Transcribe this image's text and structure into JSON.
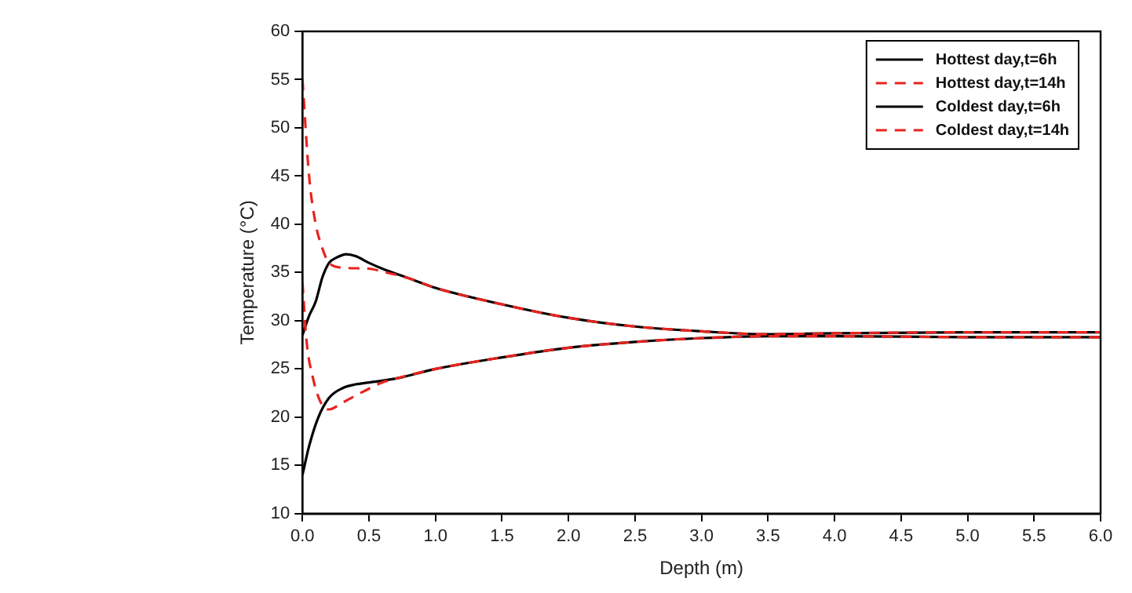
{
  "chart_data": {
    "type": "line",
    "xlabel": "Depth (m)",
    "ylabel": "Temperature (°C)",
    "xlim": [
      0,
      6
    ],
    "ylim": [
      10,
      60
    ],
    "xticks": [
      {
        "value": 0,
        "label": "0.0"
      },
      {
        "value": 0.5,
        "label": "0.5"
      },
      {
        "value": 1,
        "label": "1.0"
      },
      {
        "value": 1.5,
        "label": "1.5"
      },
      {
        "value": 2,
        "label": "2.0"
      },
      {
        "value": 2.5,
        "label": "2.5"
      },
      {
        "value": 3,
        "label": "3.0"
      },
      {
        "value": 3.5,
        "label": "3.5"
      },
      {
        "value": 4,
        "label": "4.0"
      },
      {
        "value": 4.5,
        "label": "4.5"
      },
      {
        "value": 5,
        "label": "5.0"
      },
      {
        "value": 5.5,
        "label": "5.5"
      },
      {
        "value": 6,
        "label": "6.0"
      }
    ],
    "yticks": [
      10,
      15,
      20,
      25,
      30,
      35,
      40,
      45,
      50,
      55,
      60
    ],
    "grid": false,
    "legend": "top right",
    "marker": "none",
    "series": [
      {
        "name": "Hottest day,t=6h",
        "color": "#000000",
        "line_style": "solid",
        "x": [
          0,
          0.05,
          0.1,
          0.15,
          0.2,
          0.25,
          0.33,
          0.4,
          0.5,
          0.6,
          0.8,
          1.0,
          1.5,
          2.0,
          2.5,
          3.0,
          3.5,
          4.0,
          5.0,
          6.0
        ],
        "values": [
          28.5,
          30.5,
          32,
          34.5,
          36,
          36.5,
          36.9,
          36.7,
          36,
          35.4,
          34.4,
          33.4,
          31.7,
          30.3,
          29.4,
          28.9,
          28.6,
          28.7,
          28.8,
          28.8
        ]
      },
      {
        "name": "Hottest day,t=14h",
        "color": "#e8231f",
        "line_style": "dashed",
        "x": [
          0,
          0.05,
          0.1,
          0.15,
          0.2,
          0.3,
          0.5,
          0.6,
          0.8,
          1.0,
          1.5,
          2.0,
          2.5,
          3.0,
          3.5,
          4.0,
          5.0,
          6.0
        ],
        "values": [
          55,
          45,
          40,
          37.5,
          36,
          35.5,
          35.4,
          35.1,
          34.4,
          33.4,
          31.7,
          30.3,
          29.4,
          28.9,
          28.6,
          28.7,
          28.8,
          28.8
        ]
      },
      {
        "name": "Coldest day,t=6h",
        "color": "#000000",
        "line_style": "solid",
        "x": [
          0,
          0.05,
          0.12,
          0.2,
          0.3,
          0.4,
          0.5,
          0.7,
          1.0,
          1.5,
          2.0,
          2.5,
          3.0,
          3.5,
          4.0,
          5.0,
          6.0
        ],
        "values": [
          14,
          17,
          20,
          22,
          23,
          23.4,
          23.6,
          24,
          25,
          26.2,
          27.2,
          27.8,
          28.2,
          28.4,
          28.4,
          28.3,
          28.3
        ]
      },
      {
        "name": "Coldest day,t=14h",
        "color": "#e8231f",
        "line_style": "dashed",
        "x": [
          0,
          0.03,
          0.08,
          0.15,
          0.2,
          0.3,
          0.45,
          0.6,
          0.7,
          1.0,
          1.5,
          2.0,
          2.5,
          3.0,
          3.5,
          4.0,
          5.0,
          6.0
        ],
        "values": [
          34,
          28,
          24,
          21.2,
          20.8,
          21.5,
          22.6,
          23.6,
          24,
          25,
          26.2,
          27.2,
          27.8,
          28.2,
          28.4,
          28.4,
          28.3,
          28.3
        ]
      }
    ]
  }
}
